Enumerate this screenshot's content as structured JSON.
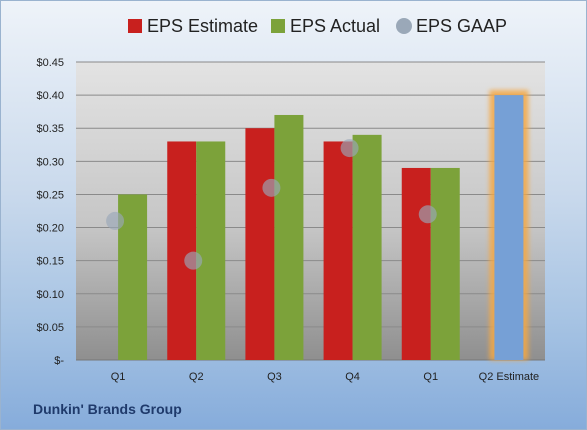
{
  "company": "Dunkin' Brands Group",
  "colors": {
    "estimate": "#c8201e",
    "actual": "#7ca23a",
    "gaap": "#9aa8b8",
    "q2_estimate": "#76a0d6",
    "q2_estimate_glow": "#f4a844"
  },
  "chart_data": {
    "type": "bar",
    "categories": [
      "Q1",
      "Q2",
      "Q3",
      "Q4",
      "Q1",
      "Q2 Estimate"
    ],
    "series": [
      {
        "name": "EPS Estimate",
        "values": [
          null,
          0.33,
          0.35,
          0.33,
          0.29,
          null
        ]
      },
      {
        "name": "EPS Actual",
        "values": [
          0.25,
          0.33,
          0.37,
          0.34,
          0.29,
          null
        ]
      },
      {
        "name": "EPS GAAP",
        "values": [
          0.21,
          0.15,
          0.26,
          0.32,
          0.22,
          null
        ]
      }
    ],
    "q2_estimate_value": 0.4,
    "ylim": [
      0,
      0.45
    ],
    "yticks": [
      0,
      0.05,
      0.1,
      0.15,
      0.2,
      0.25,
      0.3,
      0.35,
      0.4,
      0.45
    ],
    "ytick_labels": [
      "$-",
      "$0.05",
      "$0.10",
      "$0.15",
      "$0.20",
      "$0.25",
      "$0.30",
      "$0.35",
      "$0.40",
      "$0.45"
    ],
    "grid": true,
    "legend": "top"
  }
}
